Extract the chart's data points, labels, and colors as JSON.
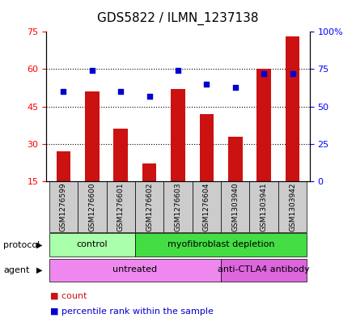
{
  "title": "GDS5822 / ILMN_1237138",
  "samples": [
    "GSM1276599",
    "GSM1276600",
    "GSM1276601",
    "GSM1276602",
    "GSM1276603",
    "GSM1276604",
    "GSM1303940",
    "GSM1303941",
    "GSM1303942"
  ],
  "bar_values": [
    27,
    51,
    36,
    22,
    52,
    42,
    33,
    60,
    73
  ],
  "percentile_values": [
    60,
    74,
    60,
    57,
    74,
    65,
    63,
    72,
    72
  ],
  "ylim_left": [
    15,
    75
  ],
  "ylim_right": [
    0,
    100
  ],
  "yticks_left": [
    15,
    30,
    45,
    60,
    75
  ],
  "yticks_right": [
    0,
    25,
    50,
    75,
    100
  ],
  "bar_color": "#cc1111",
  "dot_color": "#0000cc",
  "bar_width": 0.5,
  "protocol_groups": [
    {
      "label": "control",
      "start": 0,
      "end": 3,
      "color": "#aaffaa"
    },
    {
      "label": "myofibroblast depletion",
      "start": 3,
      "end": 9,
      "color": "#44dd44"
    }
  ],
  "agent_groups": [
    {
      "label": "untreated",
      "start": 0,
      "end": 6,
      "color": "#ee88ee"
    },
    {
      "label": "anti-CTLA4 antibody",
      "start": 6,
      "end": 9,
      "color": "#dd66dd"
    }
  ],
  "protocol_label": "protocol",
  "agent_label": "agent",
  "legend_count_label": "count",
  "legend_percentile_label": "percentile rank within the sample",
  "background_color": "#ffffff",
  "tick_label_bg": "#cccccc"
}
